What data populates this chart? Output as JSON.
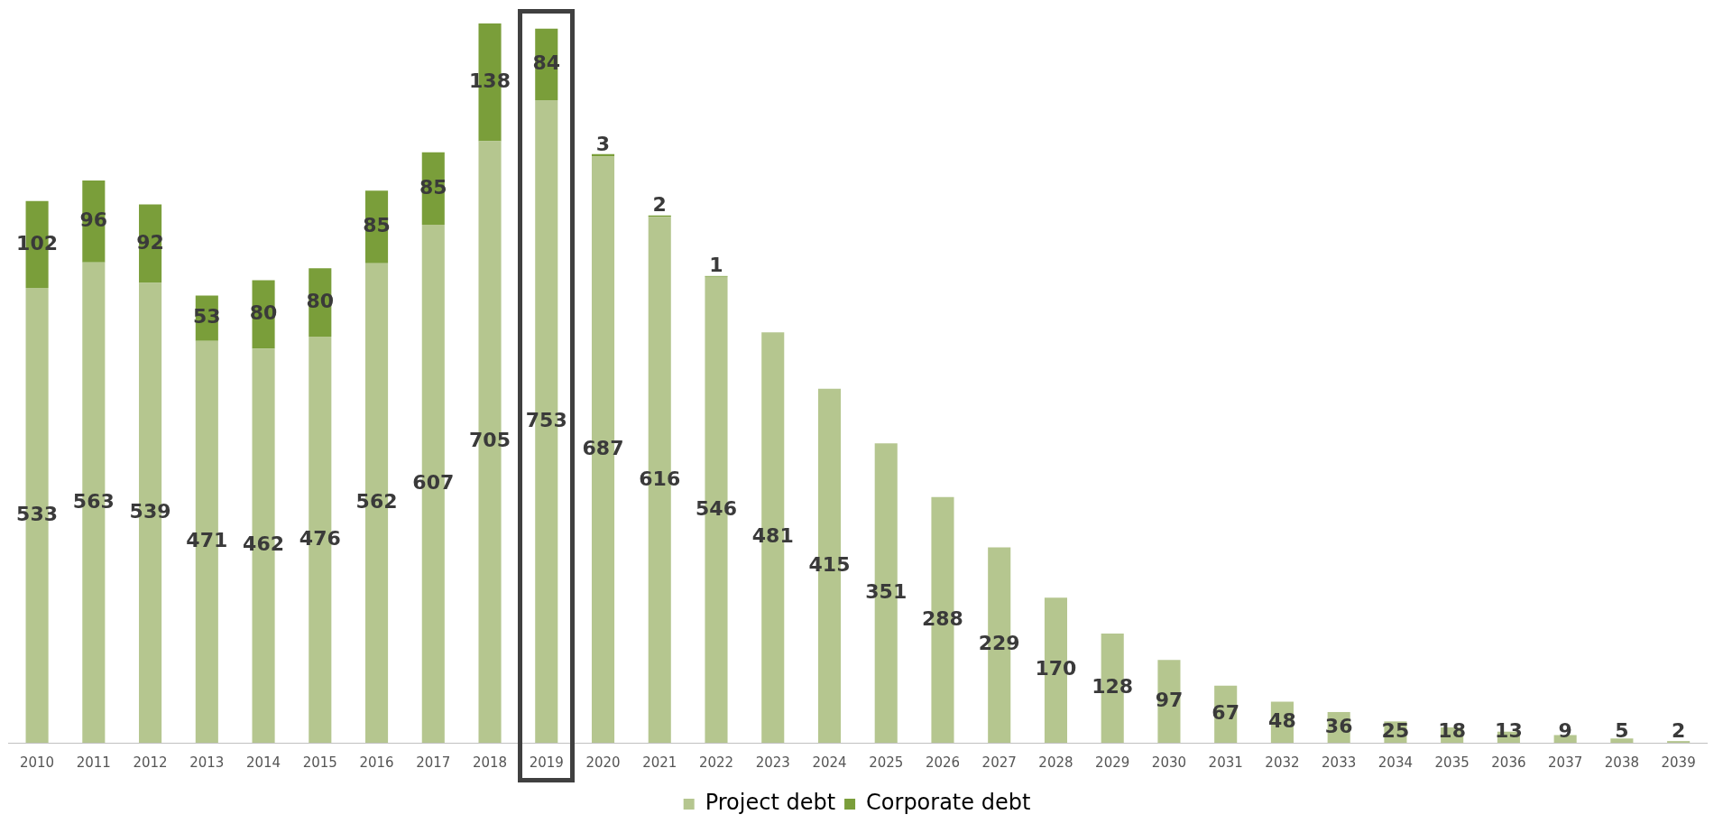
{
  "chart_data": {
    "type": "bar",
    "stacked": true,
    "data_labels": true,
    "legend": "bottom",
    "grid": false,
    "categories": [
      "2010",
      "2011",
      "2012",
      "2013",
      "2014",
      "2015",
      "2016",
      "2017",
      "2018",
      "2019",
      "2020",
      "2021",
      "2022",
      "2023",
      "2024",
      "2025",
      "2026",
      "2027",
      "2028",
      "2029",
      "2030",
      "2031",
      "2032",
      "2033",
      "2034",
      "2035",
      "2036",
      "2037",
      "2038",
      "2039"
    ],
    "series": [
      {
        "name": "Project debt",
        "color": "#b5c68f",
        "values": [
          533,
          563,
          539,
          471,
          462,
          476,
          562,
          607,
          705,
          753,
          687,
          616,
          546,
          481,
          415,
          351,
          288,
          229,
          170,
          128,
          97,
          67,
          48,
          36,
          25,
          18,
          13,
          9,
          5,
          2
        ]
      },
      {
        "name": "Corporate debt",
        "color": "#7a9e3a",
        "values": [
          102,
          96,
          92,
          53,
          80,
          80,
          85,
          85,
          138,
          84,
          3,
          2,
          1,
          null,
          null,
          null,
          null,
          null,
          null,
          null,
          null,
          null,
          null,
          null,
          null,
          null,
          null,
          null,
          null,
          null
        ]
      }
    ]
  }
}
